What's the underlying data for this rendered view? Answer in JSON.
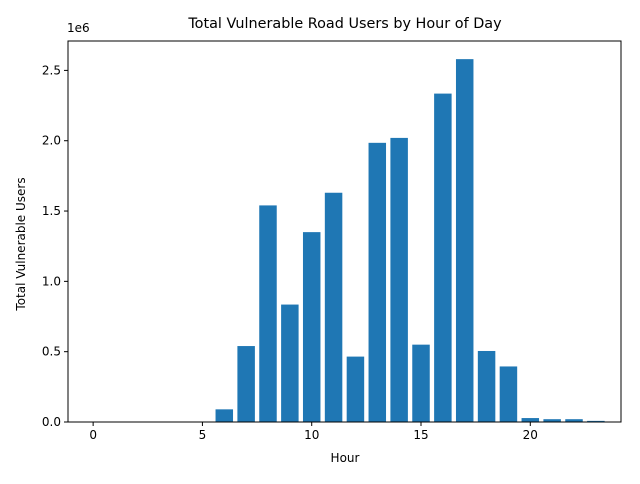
{
  "chart_data": {
    "type": "bar",
    "title": "Total Vulnerable Road Users by Hour of Day",
    "xlabel": "Hour",
    "ylabel": "Total Vulnerable Users",
    "offset_label": "1e6",
    "x": [
      0,
      1,
      2,
      3,
      4,
      5,
      6,
      7,
      8,
      9,
      10,
      11,
      12,
      13,
      14,
      15,
      16,
      17,
      18,
      19,
      20,
      21,
      22,
      23
    ],
    "values": [
      0,
      0,
      0,
      0,
      0,
      0,
      90000,
      540000,
      1540000,
      835000,
      1350000,
      1630000,
      465000,
      1985000,
      2020000,
      550000,
      2335000,
      2580000,
      505000,
      395000,
      28000,
      20000,
      20000,
      8000
    ],
    "xlim": [
      -1.15,
      24.15
    ],
    "ylim": [
      0,
      2709000
    ],
    "xticks": [
      0,
      5,
      10,
      15,
      20
    ],
    "xtick_labels": [
      "0",
      "5",
      "10",
      "15",
      "20"
    ],
    "yticks": [
      0,
      500000,
      1000000,
      1500000,
      2000000,
      2500000
    ],
    "ytick_labels": [
      "0.0",
      "0.5",
      "1.0",
      "1.5",
      "2.0",
      "2.5"
    ],
    "bar_color": "#1f77b4",
    "grid": false,
    "legend": "none"
  }
}
